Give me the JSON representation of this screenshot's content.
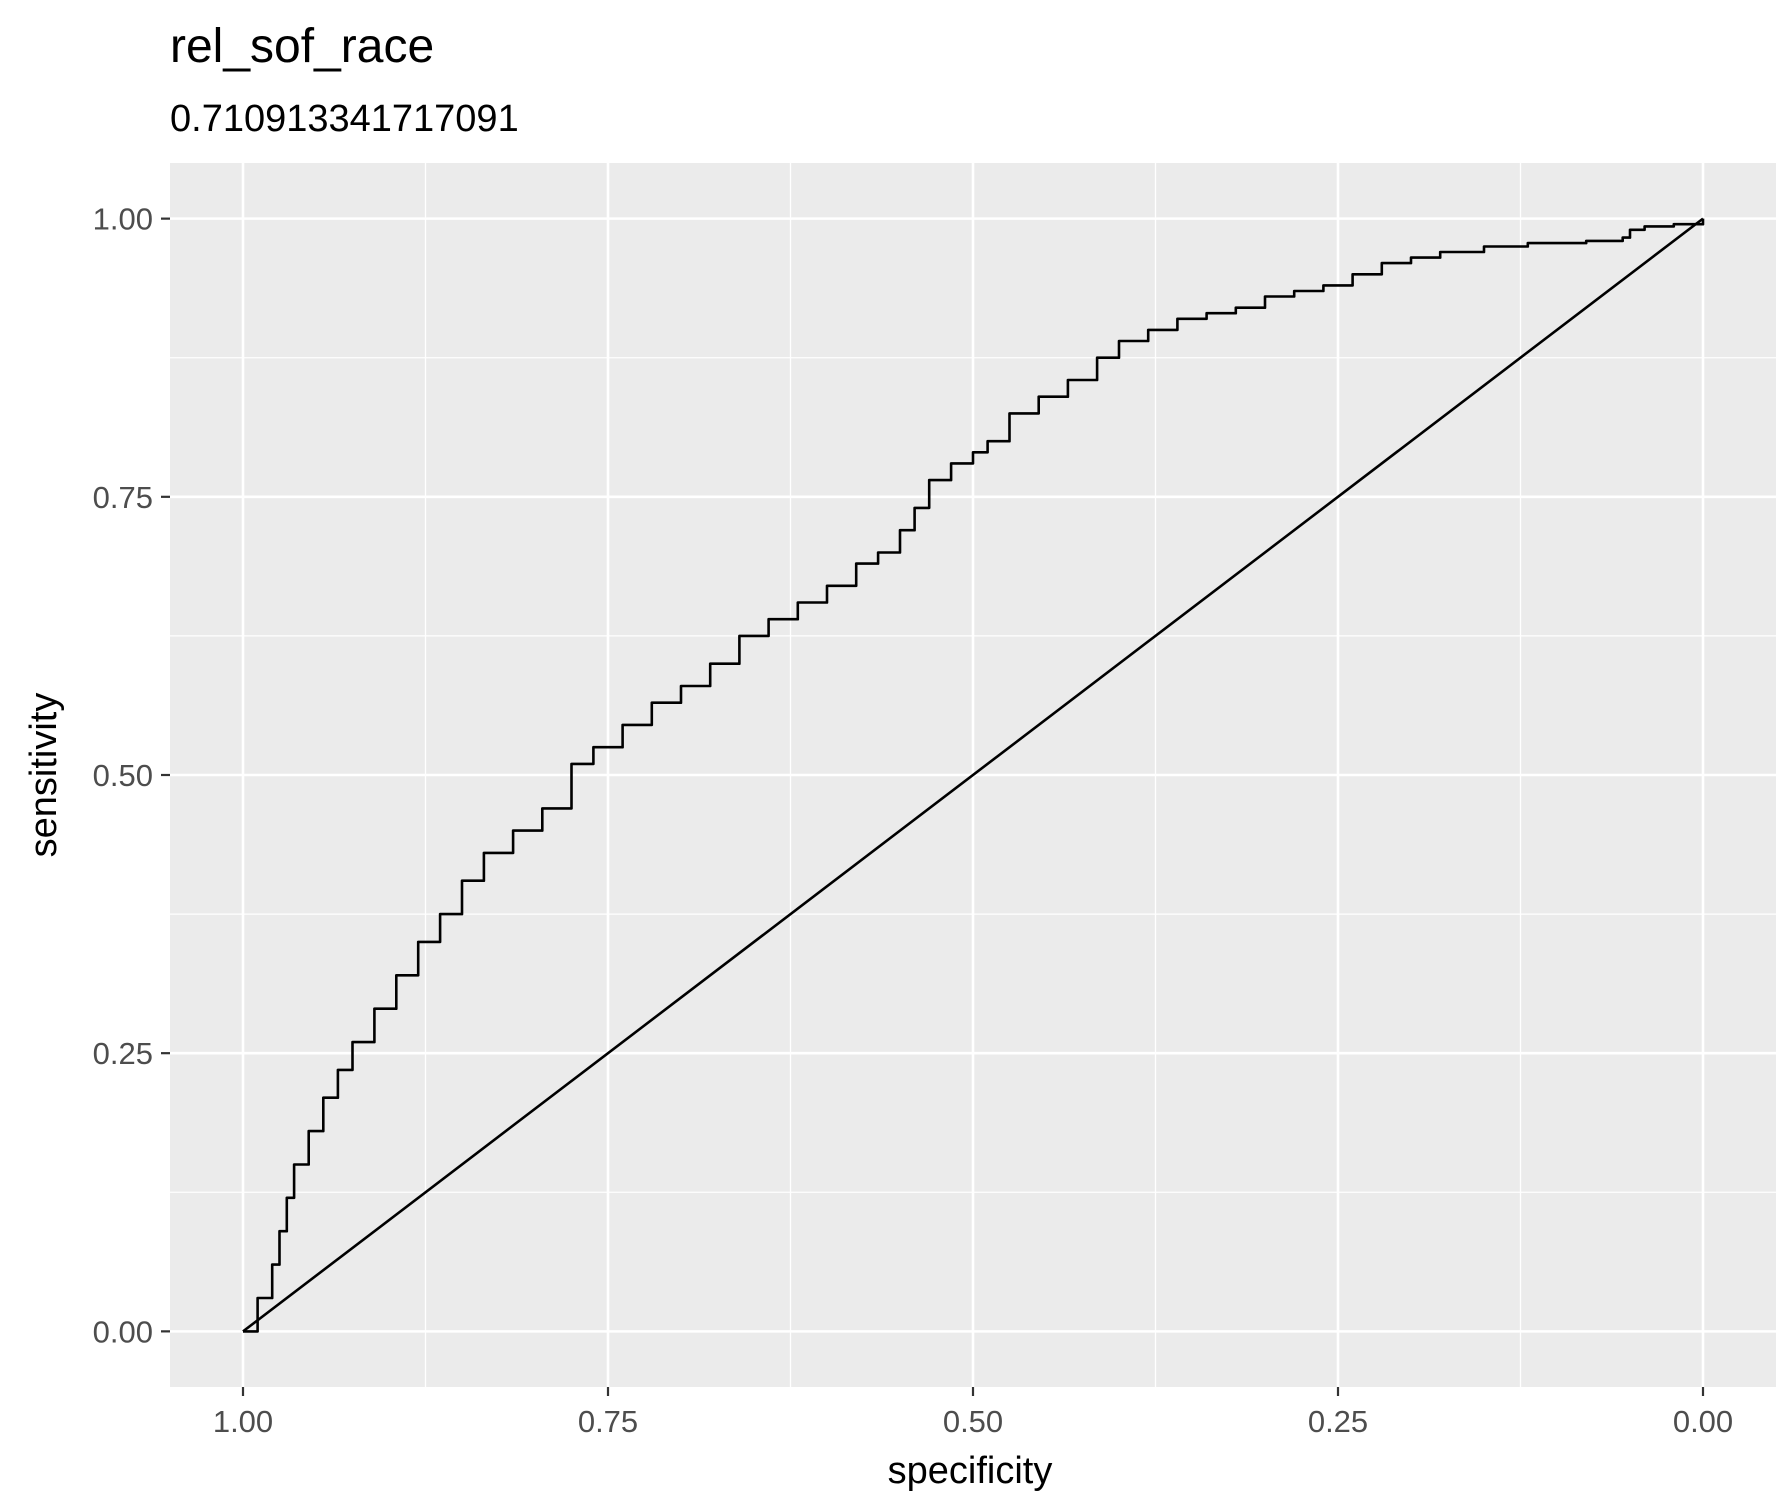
{
  "chart_data": {
    "type": "line",
    "title": "rel_sof_race",
    "subtitle": "0.710913341717091",
    "xlabel": "specificity",
    "ylabel": "sensitivity",
    "x_reversed": true,
    "xlim": [
      1.05,
      -0.05
    ],
    "ylim": [
      -0.05,
      1.05
    ],
    "x_ticks": [
      {
        "value": 1.0,
        "label": "1.00"
      },
      {
        "value": 0.75,
        "label": "0.75"
      },
      {
        "value": 0.5,
        "label": "0.50"
      },
      {
        "value": 0.25,
        "label": "0.25"
      },
      {
        "value": 0.0,
        "label": "0.00"
      }
    ],
    "y_ticks": [
      {
        "value": 0.0,
        "label": "0.00"
      },
      {
        "value": 0.25,
        "label": "0.25"
      },
      {
        "value": 0.5,
        "label": "0.50"
      },
      {
        "value": 0.75,
        "label": "0.75"
      },
      {
        "value": 1.0,
        "label": "1.00"
      }
    ],
    "grid": true,
    "background": "#ebebeb",
    "grid_color": "#ffffff",
    "line_color": "#000000",
    "series": [
      {
        "specificity": [
          1.0,
          0.99,
          0.98,
          0.975,
          0.97,
          0.965,
          0.955,
          0.945,
          0.935,
          0.925,
          0.91,
          0.895,
          0.88,
          0.865,
          0.85,
          0.835,
          0.815,
          0.795,
          0.775,
          0.76,
          0.74,
          0.72,
          0.7,
          0.68,
          0.66,
          0.64,
          0.62,
          0.6,
          0.58,
          0.565,
          0.55,
          0.54,
          0.53,
          0.515,
          0.5,
          0.49,
          0.475,
          0.455,
          0.435,
          0.415,
          0.4,
          0.38,
          0.36,
          0.34,
          0.32,
          0.3,
          0.28,
          0.26,
          0.24,
          0.22,
          0.2,
          0.18,
          0.15,
          0.12,
          0.08,
          0.055,
          0.05,
          0.04,
          0.02,
          0.0
        ],
        "sensitivity": [
          0.0,
          0.03,
          0.06,
          0.09,
          0.12,
          0.15,
          0.18,
          0.21,
          0.235,
          0.26,
          0.29,
          0.32,
          0.35,
          0.375,
          0.405,
          0.43,
          0.45,
          0.47,
          0.51,
          0.525,
          0.545,
          0.565,
          0.58,
          0.6,
          0.625,
          0.64,
          0.655,
          0.67,
          0.69,
          0.7,
          0.72,
          0.74,
          0.765,
          0.78,
          0.79,
          0.8,
          0.825,
          0.84,
          0.855,
          0.875,
          0.89,
          0.9,
          0.91,
          0.915,
          0.92,
          0.93,
          0.935,
          0.94,
          0.95,
          0.96,
          0.965,
          0.97,
          0.975,
          0.978,
          0.98,
          0.983,
          0.99,
          0.993,
          0.995,
          1.0
        ]
      },
      {
        "specificity": [
          1.0,
          0.0
        ],
        "sensitivity": [
          0.0,
          1.0
        ]
      }
    ]
  }
}
